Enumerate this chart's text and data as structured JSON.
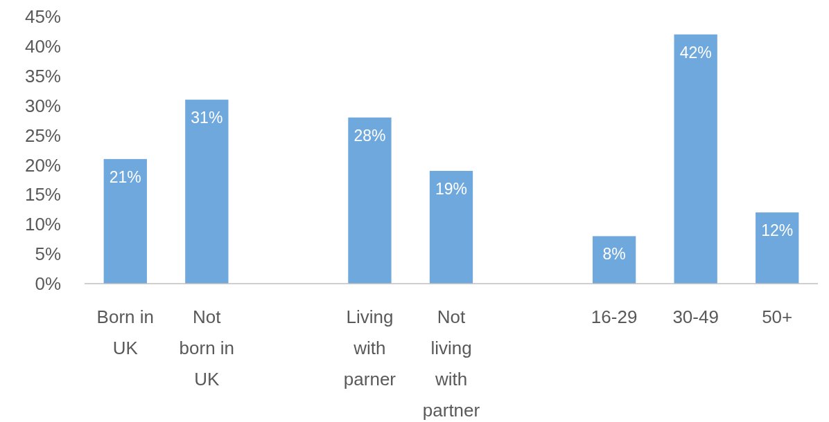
{
  "chart_data": {
    "type": "bar",
    "categories": [
      "Born in UK",
      "Not born in UK",
      null,
      "Living with parner",
      "Not living with partner",
      null,
      "16-29",
      "30-49",
      "50+"
    ],
    "values": [
      21,
      31,
      null,
      28,
      19,
      null,
      8,
      42,
      12
    ],
    "value_labels": [
      "21%",
      "31%",
      null,
      "28%",
      "19%",
      null,
      "8%",
      "42%",
      "12%"
    ],
    "color": "#6fa8dc",
    "ylim": [
      0,
      45
    ],
    "yticks": [
      {
        "value": 0,
        "label": "0%"
      },
      {
        "value": 5,
        "label": "5%"
      },
      {
        "value": 10,
        "label": "10%"
      },
      {
        "value": 15,
        "label": "15%"
      },
      {
        "value": 20,
        "label": "20%"
      },
      {
        "value": 25,
        "label": "25%"
      },
      {
        "value": 30,
        "label": "30%"
      },
      {
        "value": 35,
        "label": "35%"
      },
      {
        "value": 40,
        "label": "40%"
      },
      {
        "value": 45,
        "label": "45%"
      }
    ],
    "grid": false
  }
}
